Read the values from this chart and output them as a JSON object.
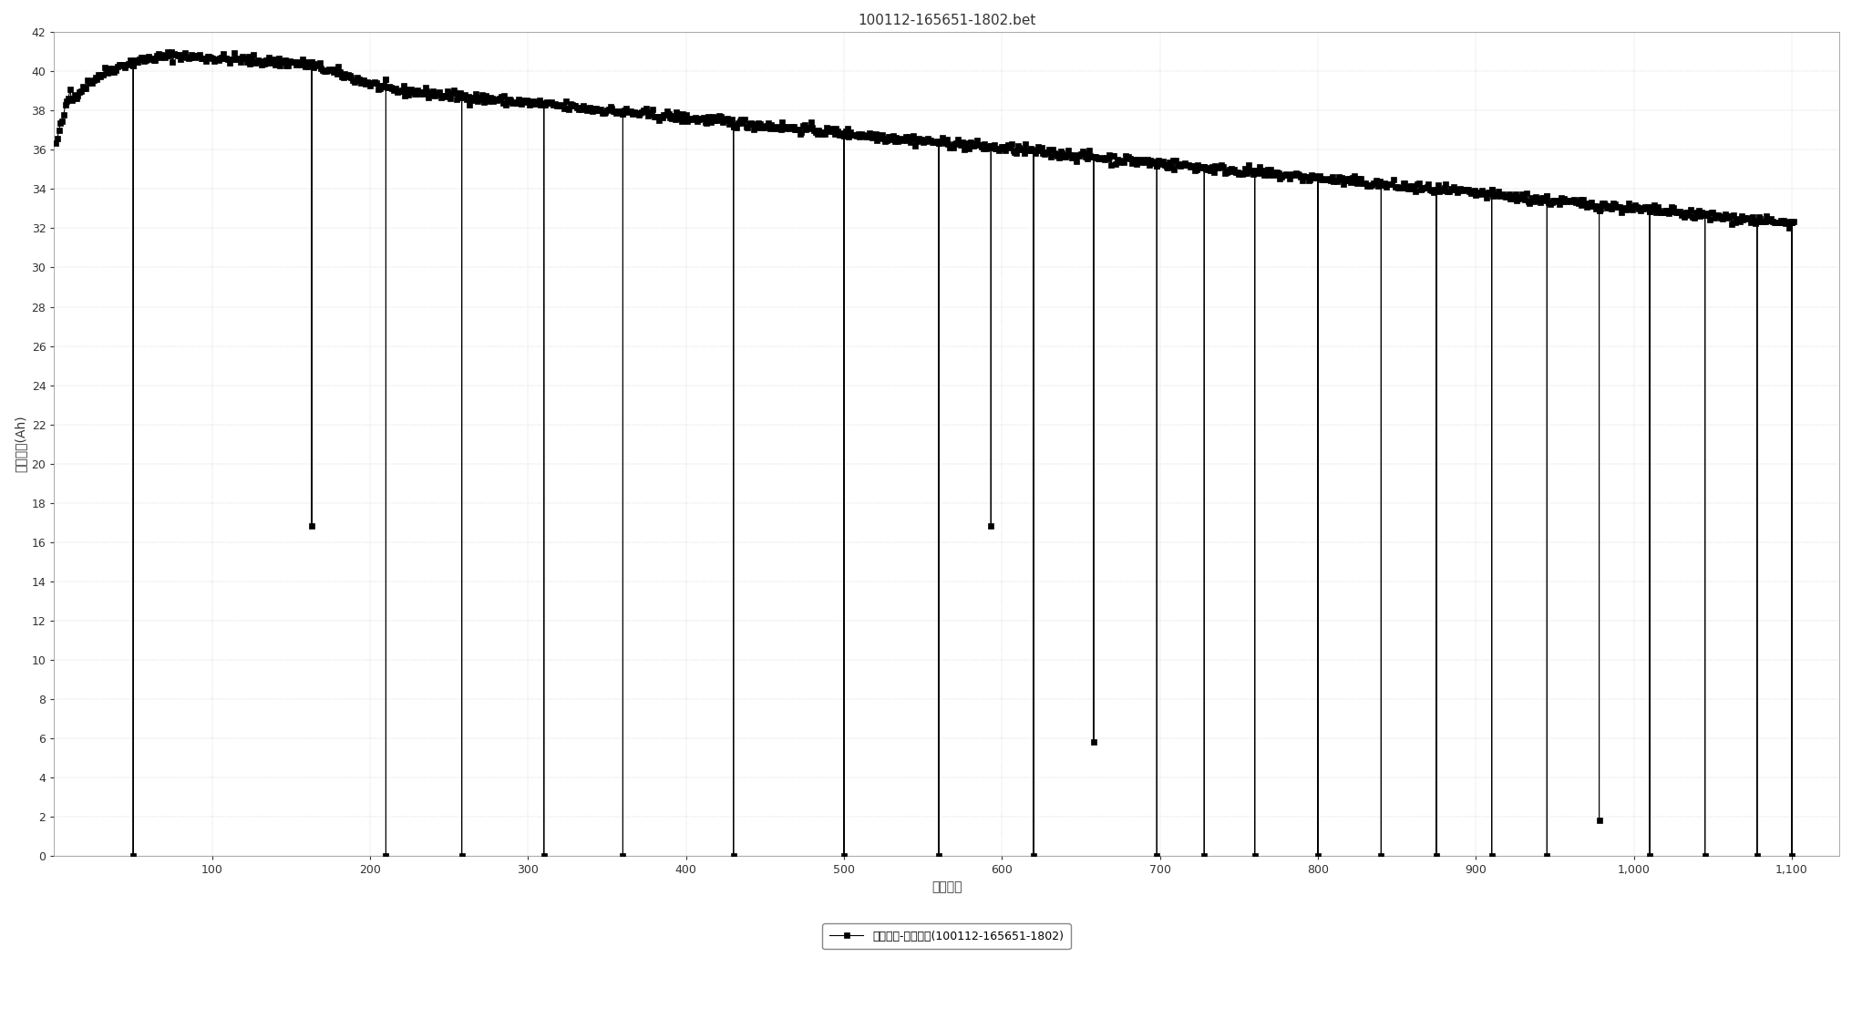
{
  "title": "100112-165651-1802.bet",
  "xlabel": "循环序号",
  "ylabel": "放电容量(Ah)",
  "legend_label": "循环序号-放电容量(100112-165651-1802)",
  "xlim": [
    0,
    1130
  ],
  "ylim": [
    0,
    42
  ],
  "yticks": [
    0,
    2,
    4,
    6,
    8,
    10,
    12,
    14,
    16,
    18,
    20,
    22,
    24,
    26,
    28,
    30,
    32,
    34,
    36,
    38,
    40,
    42
  ],
  "xticks": [
    100,
    200,
    300,
    400,
    500,
    600,
    700,
    800,
    900,
    1000,
    1100
  ],
  "background_color": "#ffffff",
  "plot_bg_color": "#ffffff",
  "line_color": "#000000",
  "marker": "s",
  "marker_size": 4,
  "line_width": 0.8,
  "drop_positions": [
    {
      "x": 50,
      "y_bottom": 0.0
    },
    {
      "x": 163,
      "y_bottom": 16.8
    },
    {
      "x": 210,
      "y_bottom": 0.0
    },
    {
      "x": 258,
      "y_bottom": 0.0
    },
    {
      "x": 310,
      "y_bottom": 0.0
    },
    {
      "x": 360,
      "y_bottom": 0.0
    },
    {
      "x": 430,
      "y_bottom": 0.0
    },
    {
      "x": 500,
      "y_bottom": 0.0
    },
    {
      "x": 560,
      "y_bottom": 0.0
    },
    {
      "x": 593,
      "y_bottom": 16.8
    },
    {
      "x": 620,
      "y_bottom": 0.0
    },
    {
      "x": 658,
      "y_bottom": 5.8
    },
    {
      "x": 698,
      "y_bottom": 0.0
    },
    {
      "x": 728,
      "y_bottom": 0.0
    },
    {
      "x": 760,
      "y_bottom": 0.0
    },
    {
      "x": 800,
      "y_bottom": 0.0
    },
    {
      "x": 840,
      "y_bottom": 0.0
    },
    {
      "x": 875,
      "y_bottom": 0.0
    },
    {
      "x": 910,
      "y_bottom": 0.0
    },
    {
      "x": 945,
      "y_bottom": 0.0
    },
    {
      "x": 978,
      "y_bottom": 1.8
    },
    {
      "x": 1010,
      "y_bottom": 0.0
    },
    {
      "x": 1045,
      "y_bottom": 0.0
    },
    {
      "x": 1078,
      "y_bottom": 0.0
    },
    {
      "x": 1100,
      "y_bottom": 0.0
    }
  ]
}
